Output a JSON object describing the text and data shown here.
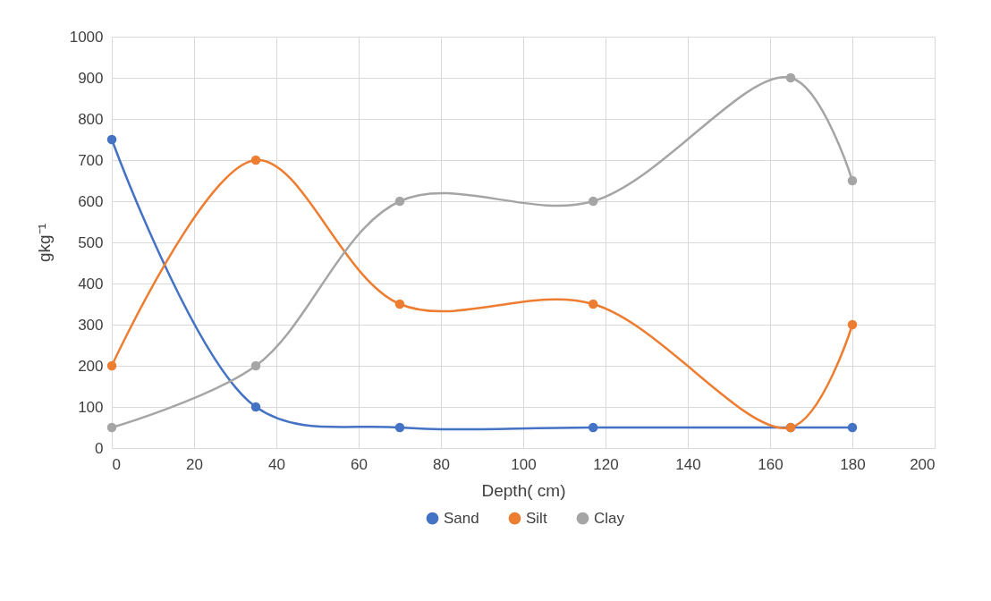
{
  "chart_data": {
    "type": "line",
    "xlabel": "Depth( cm)",
    "ylabel": "gkg⁻¹",
    "x": [
      0,
      35,
      70,
      117,
      165,
      180
    ],
    "series": [
      {
        "name": "Sand",
        "color": "#4472c4",
        "values": [
          750,
          100,
          50,
          50,
          50,
          50
        ]
      },
      {
        "name": "Silt",
        "color": "#ed7d31",
        "values": [
          200,
          700,
          350,
          350,
          50,
          300
        ]
      },
      {
        "name": "Clay",
        "color": "#a5a5a5",
        "values": [
          50,
          200,
          600,
          600,
          900,
          650
        ]
      }
    ],
    "xlim": [
      0,
      200
    ],
    "xticks": [
      0,
      20,
      40,
      60,
      80,
      100,
      120,
      140,
      160,
      180,
      200
    ],
    "ylim": [
      0,
      1000
    ],
    "yticks": [
      0,
      100,
      200,
      300,
      400,
      500,
      600,
      700,
      800,
      900,
      1000
    ],
    "grid": true,
    "legend": "bottom",
    "marker": "circle",
    "line_style": "solid"
  }
}
